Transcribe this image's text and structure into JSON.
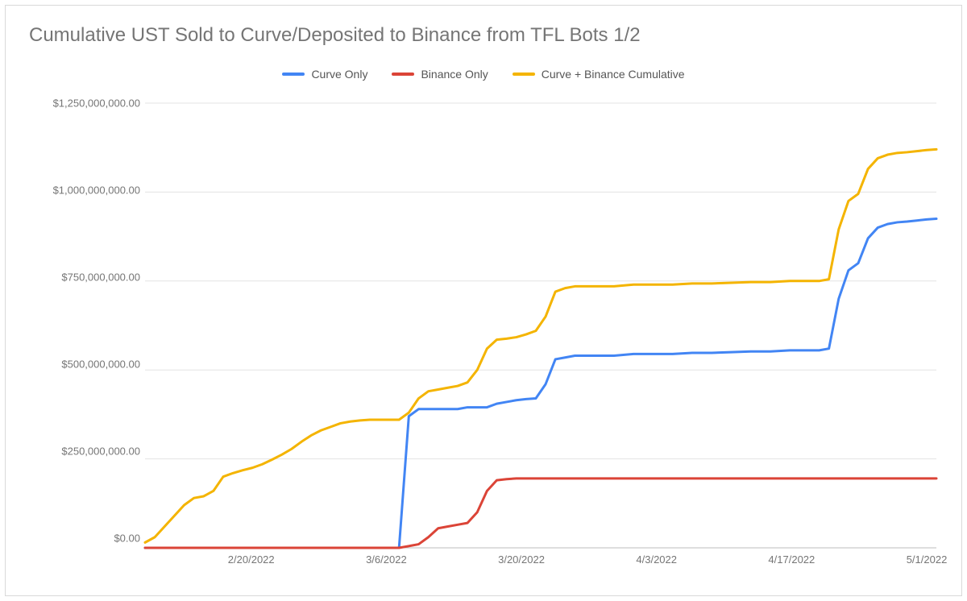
{
  "chart": {
    "type": "line",
    "title": "Cumulative UST Sold to Curve/Deposited to Binance from TFL Bots 1/2",
    "title_fontsize": 24,
    "title_color": "#757575",
    "background_color": "#ffffff",
    "border_color": "#d9d9d9",
    "grid_color": "#e3e3e3",
    "axis_label_color": "#757575",
    "axis_label_fontsize": 13,
    "line_width": 3,
    "y_axis": {
      "min": 0,
      "max": 1250000000,
      "ticks": [
        {
          "value": 0,
          "label": "$0.00"
        },
        {
          "value": 250000000,
          "label": "$250,000,000.00"
        },
        {
          "value": 500000000,
          "label": "$500,000,000.00"
        },
        {
          "value": 750000000,
          "label": "$750,000,000.00"
        },
        {
          "value": 1000000000,
          "label": "$1,000,000,000.00"
        },
        {
          "value": 1250000000,
          "label": "$1,250,000,000.00"
        }
      ]
    },
    "x_axis": {
      "min": 0,
      "max": 81,
      "ticks": [
        {
          "value": 11,
          "label": "2/20/2022"
        },
        {
          "value": 25,
          "label": "3/6/2022"
        },
        {
          "value": 39,
          "label": "3/20/2022"
        },
        {
          "value": 53,
          "label": "4/3/2022"
        },
        {
          "value": 67,
          "label": "4/17/2022"
        },
        {
          "value": 81,
          "label": "5/1/2022"
        }
      ]
    },
    "legend": {
      "position": "top-center",
      "items": [
        {
          "label": "Curve Only",
          "color": "#4285f4"
        },
        {
          "label": "Binance Only",
          "color": "#db4437"
        },
        {
          "label": "Curve + Binance Cumulative",
          "color": "#f4b400"
        }
      ]
    },
    "series": [
      {
        "name": "Curve Only",
        "color": "#4285f4",
        "points": [
          [
            0,
            0
          ],
          [
            2,
            0
          ],
          [
            3,
            0
          ],
          [
            4,
            0
          ],
          [
            5,
            0
          ],
          [
            6,
            0
          ],
          [
            7,
            0
          ],
          [
            8,
            0
          ],
          [
            9,
            0
          ],
          [
            10,
            0
          ],
          [
            11,
            0
          ],
          [
            12,
            0
          ],
          [
            14,
            0
          ],
          [
            16,
            0
          ],
          [
            18,
            0
          ],
          [
            20,
            0
          ],
          [
            22,
            0
          ],
          [
            24,
            0
          ],
          [
            26,
            0
          ],
          [
            27,
            370000000
          ],
          [
            28,
            390000000
          ],
          [
            29,
            390000000
          ],
          [
            30,
            390000000
          ],
          [
            31,
            390000000
          ],
          [
            32,
            390000000
          ],
          [
            33,
            395000000
          ],
          [
            34,
            395000000
          ],
          [
            35,
            395000000
          ],
          [
            36,
            405000000
          ],
          [
            37,
            410000000
          ],
          [
            38,
            415000000
          ],
          [
            39,
            418000000
          ],
          [
            40,
            420000000
          ],
          [
            41,
            460000000
          ],
          [
            42,
            530000000
          ],
          [
            43,
            535000000
          ],
          [
            44,
            540000000
          ],
          [
            46,
            540000000
          ],
          [
            48,
            540000000
          ],
          [
            50,
            545000000
          ],
          [
            52,
            545000000
          ],
          [
            54,
            545000000
          ],
          [
            56,
            548000000
          ],
          [
            58,
            548000000
          ],
          [
            60,
            550000000
          ],
          [
            62,
            552000000
          ],
          [
            64,
            552000000
          ],
          [
            66,
            555000000
          ],
          [
            68,
            555000000
          ],
          [
            69,
            555000000
          ],
          [
            70,
            560000000
          ],
          [
            71,
            700000000
          ],
          [
            72,
            780000000
          ],
          [
            73,
            800000000
          ],
          [
            74,
            870000000
          ],
          [
            75,
            900000000
          ],
          [
            76,
            910000000
          ],
          [
            77,
            915000000
          ],
          [
            78,
            917000000
          ],
          [
            79,
            920000000
          ],
          [
            80,
            923000000
          ],
          [
            81,
            925000000
          ]
        ]
      },
      {
        "name": "Binance Only",
        "color": "#db4437",
        "points": [
          [
            0,
            0
          ],
          [
            5,
            0
          ],
          [
            10,
            0
          ],
          [
            15,
            0
          ],
          [
            20,
            0
          ],
          [
            24,
            0
          ],
          [
            26,
            0
          ],
          [
            27,
            5000000
          ],
          [
            28,
            10000000
          ],
          [
            29,
            30000000
          ],
          [
            30,
            55000000
          ],
          [
            31,
            60000000
          ],
          [
            32,
            65000000
          ],
          [
            33,
            70000000
          ],
          [
            34,
            100000000
          ],
          [
            35,
            160000000
          ],
          [
            36,
            190000000
          ],
          [
            37,
            193000000
          ],
          [
            38,
            195000000
          ],
          [
            40,
            195000000
          ],
          [
            45,
            195000000
          ],
          [
            50,
            195000000
          ],
          [
            55,
            195000000
          ],
          [
            60,
            195000000
          ],
          [
            65,
            195000000
          ],
          [
            70,
            195000000
          ],
          [
            75,
            195000000
          ],
          [
            81,
            195000000
          ]
        ]
      },
      {
        "name": "Curve + Binance Cumulative",
        "color": "#f4b400",
        "points": [
          [
            0,
            15000000
          ],
          [
            1,
            30000000
          ],
          [
            2,
            60000000
          ],
          [
            3,
            90000000
          ],
          [
            4,
            120000000
          ],
          [
            5,
            140000000
          ],
          [
            6,
            145000000
          ],
          [
            7,
            160000000
          ],
          [
            8,
            200000000
          ],
          [
            9,
            210000000
          ],
          [
            10,
            218000000
          ],
          [
            11,
            225000000
          ],
          [
            12,
            235000000
          ],
          [
            13,
            248000000
          ],
          [
            14,
            262000000
          ],
          [
            15,
            278000000
          ],
          [
            16,
            298000000
          ],
          [
            17,
            316000000
          ],
          [
            18,
            330000000
          ],
          [
            19,
            340000000
          ],
          [
            20,
            350000000
          ],
          [
            21,
            355000000
          ],
          [
            22,
            358000000
          ],
          [
            23,
            360000000
          ],
          [
            24,
            360000000
          ],
          [
            25,
            360000000
          ],
          [
            26,
            360000000
          ],
          [
            27,
            380000000
          ],
          [
            28,
            420000000
          ],
          [
            29,
            440000000
          ],
          [
            30,
            445000000
          ],
          [
            31,
            450000000
          ],
          [
            32,
            455000000
          ],
          [
            33,
            465000000
          ],
          [
            34,
            500000000
          ],
          [
            35,
            560000000
          ],
          [
            36,
            585000000
          ],
          [
            37,
            588000000
          ],
          [
            38,
            592000000
          ],
          [
            39,
            600000000
          ],
          [
            40,
            610000000
          ],
          [
            41,
            650000000
          ],
          [
            42,
            720000000
          ],
          [
            43,
            730000000
          ],
          [
            44,
            735000000
          ],
          [
            46,
            735000000
          ],
          [
            48,
            735000000
          ],
          [
            50,
            740000000
          ],
          [
            52,
            740000000
          ],
          [
            54,
            740000000
          ],
          [
            56,
            743000000
          ],
          [
            58,
            743000000
          ],
          [
            60,
            745000000
          ],
          [
            62,
            747000000
          ],
          [
            64,
            747000000
          ],
          [
            66,
            750000000
          ],
          [
            68,
            750000000
          ],
          [
            69,
            750000000
          ],
          [
            70,
            755000000
          ],
          [
            71,
            895000000
          ],
          [
            72,
            975000000
          ],
          [
            73,
            995000000
          ],
          [
            74,
            1065000000
          ],
          [
            75,
            1095000000
          ],
          [
            76,
            1105000000
          ],
          [
            77,
            1110000000
          ],
          [
            78,
            1112000000
          ],
          [
            79,
            1115000000
          ],
          [
            80,
            1118000000
          ],
          [
            81,
            1120000000
          ]
        ]
      }
    ]
  }
}
